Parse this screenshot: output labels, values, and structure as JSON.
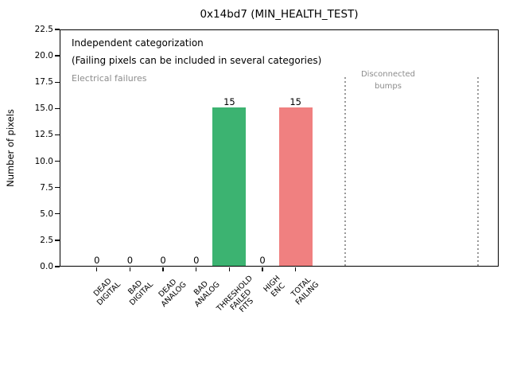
{
  "chart_data": {
    "type": "bar",
    "title": "0x14bd7 (MIN_HEALTH_TEST)",
    "ylabel": "Number of pixels",
    "xlabel": "",
    "ylim": [
      0,
      22.5
    ],
    "ytick_labels": [
      "0.0",
      "2.5",
      "5.0",
      "7.5",
      "10.0",
      "12.5",
      "15.0",
      "17.5",
      "20.0",
      "22.5"
    ],
    "categories": [
      "DEAD\nDIGITAL",
      "BAD\nDIGITAL",
      "DEAD\nANALOG",
      "BAD\nANALOG",
      "THRESHOLD\nFAILED\nFITS",
      "HIGH\nENC",
      "TOTAL\nFAILING"
    ],
    "values": [
      0,
      0,
      0,
      0,
      15,
      0,
      15
    ],
    "value_labels": [
      "0",
      "0",
      "0",
      "0",
      "15",
      "0",
      "15"
    ],
    "bar_colors": [
      "#3cb371",
      "#3cb371",
      "#3cb371",
      "#3cb371",
      "#3cb371",
      "#3cb371",
      "#f08080"
    ],
    "grid": false,
    "legend": null,
    "annotations": {
      "independent": "Independent categorization",
      "note": "(Failing pixels can be included in several categories)",
      "electrical": "Electrical failures",
      "disconnected": "Disconnected\nbumps"
    },
    "region_separators_slot": [
      7.5,
      11.5
    ],
    "separator_top_value": 18,
    "colors": {
      "bar_green": "#3cb371",
      "bar_red": "#f08080",
      "gray_text": "#8c8c8c",
      "separator": "#999999",
      "axis": "#000000"
    }
  }
}
